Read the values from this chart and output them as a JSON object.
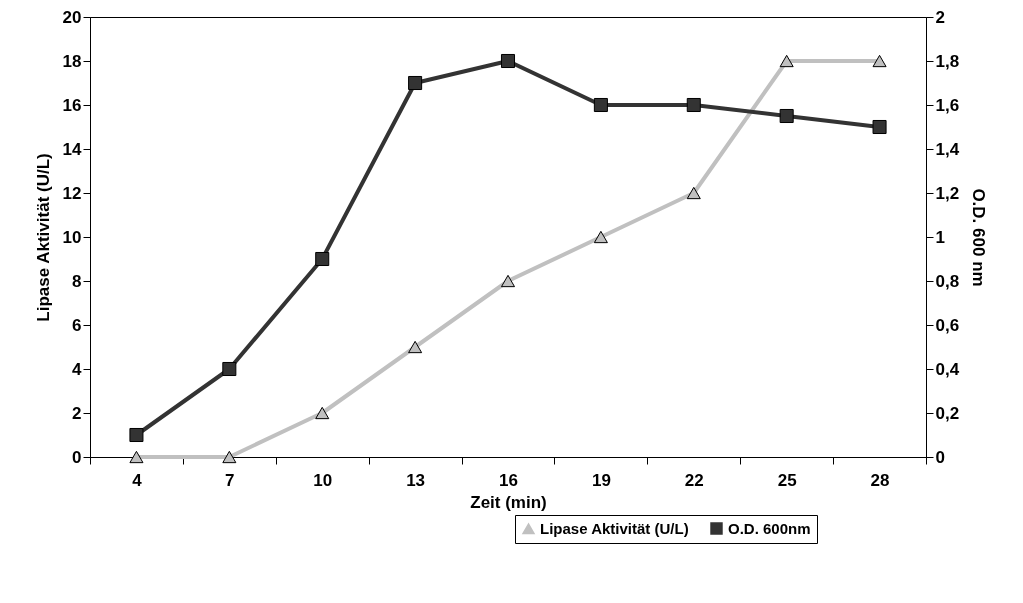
{
  "chart_data": {
    "type": "line",
    "xlabel": "Zeit (min)",
    "ylabel": "Lipase Aktivität (U/L)",
    "y2label": "O.D. 600 nm",
    "categories": [
      "4",
      "7",
      "10",
      "13",
      "16",
      "19",
      "22",
      "25",
      "28"
    ],
    "series": [
      {
        "name": "Lipase Aktivität  (U/L)",
        "color": "#c0c0c0",
        "marker": "triangle",
        "values": [
          0,
          0,
          2,
          5,
          8,
          10,
          12,
          18,
          18
        ]
      },
      {
        "name": "O.D. 600nm",
        "color": "#333333",
        "marker": "square",
        "axis": "y2",
        "values": [
          0.1,
          0.4,
          0.9,
          1.7,
          1.8,
          1.6,
          1.6,
          1.55,
          1.5
        ]
      }
    ],
    "ylim": [
      0,
      20
    ],
    "yticks": [
      0,
      2,
      4,
      6,
      8,
      10,
      12,
      14,
      16,
      18,
      20
    ],
    "y2lim": [
      0,
      2
    ],
    "y2ticks": [
      0,
      {
        "value": 0.2,
        "label": "0,2"
      },
      {
        "value": 0.4,
        "label": "0,4"
      },
      {
        "value": 0.6,
        "label": "0,6"
      },
      {
        "value": 0.8,
        "label": "0,8"
      },
      1,
      {
        "value": 1.2,
        "label": "1,2"
      },
      {
        "value": 1.4,
        "label": "1,4"
      },
      {
        "value": 1.6,
        "label": "1,6"
      },
      {
        "value": 1.8,
        "label": "1,8"
      },
      2
    ],
    "grid": false,
    "legend": "bottom right",
    "line_style": "solid"
  }
}
